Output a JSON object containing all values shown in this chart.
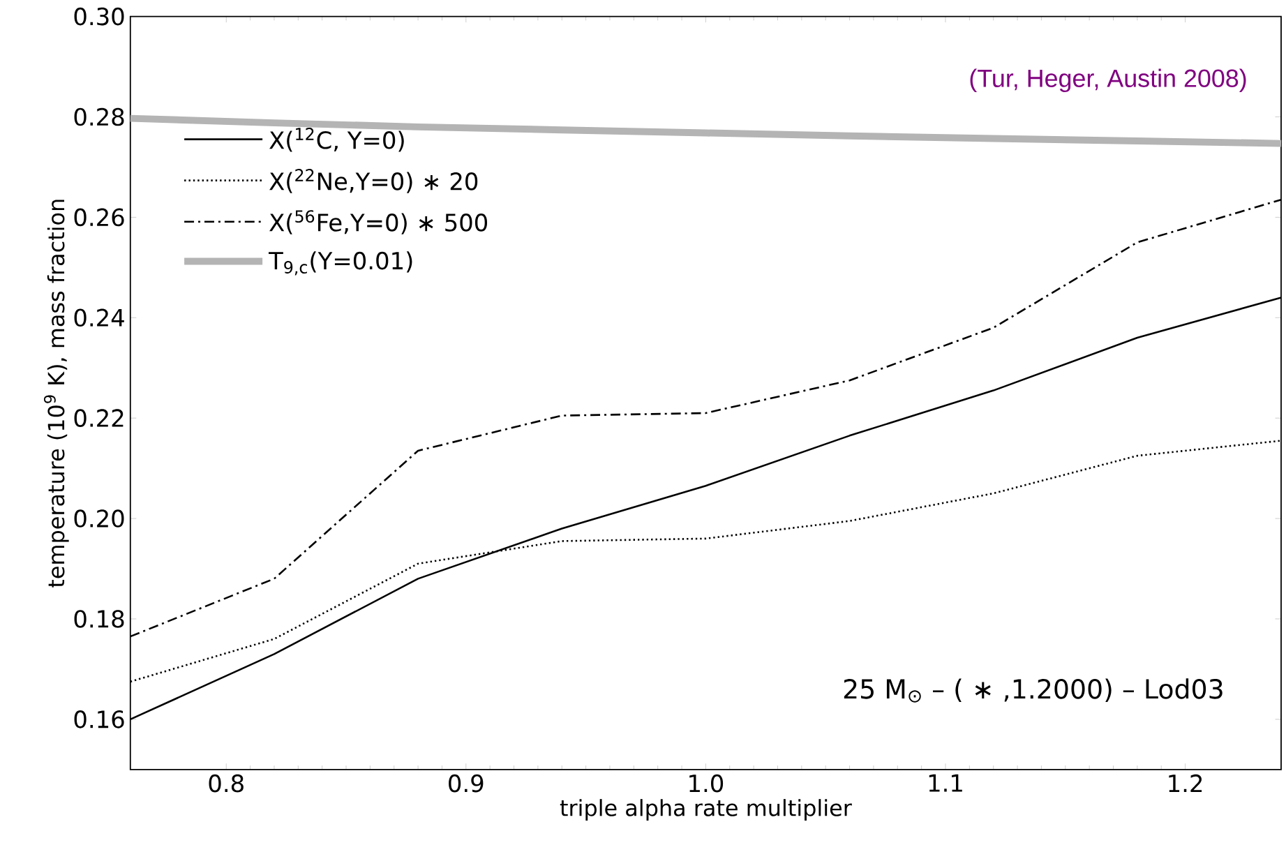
{
  "chart_data": {
    "type": "line",
    "xlabel": "triple alpha rate multiplier",
    "ylabel": "temperature (10$^{9}$ K),   mass fraction",
    "x": [
      0.76,
      0.82,
      0.88,
      0.94,
      1.0,
      1.06,
      1.12,
      1.18,
      1.24
    ],
    "series": [
      {
        "name": "X($^{12}$C, Y=0)",
        "color": "#000000",
        "line_style": "solid",
        "values": [
          0.16,
          0.173,
          0.188,
          0.198,
          0.2065,
          0.2165,
          0.2255,
          0.236,
          0.244
        ]
      },
      {
        "name": "X($^{22}$Ne,Y=0) ∗ 20",
        "color": "#000000",
        "line_style": "dotted",
        "values": [
          0.1675,
          0.176,
          0.191,
          0.1955,
          0.196,
          0.1995,
          0.205,
          0.2125,
          0.2155
        ]
      },
      {
        "name": "X($^{56}$Fe,Y=0) ∗ 500",
        "color": "#000000",
        "line_style": "dashdot",
        "values": [
          0.1765,
          0.188,
          0.2135,
          0.2205,
          0.221,
          0.2275,
          0.238,
          0.255,
          0.2635
        ]
      },
      {
        "name": "T$_{9,c}$(Y=0.01)",
        "color": "#b4b4b4",
        "line_style": "solid",
        "values": [
          0.2797,
          0.2788,
          0.278,
          0.2774,
          0.2768,
          0.2762,
          0.2757,
          0.2752,
          0.2747
        ]
      }
    ],
    "xlim": [
      0.76,
      1.24
    ],
    "ylim": [
      0.15,
      0.3
    ],
    "xticks": [
      0.8,
      0.9,
      {
        "value": 1.0,
        "label": "1.0"
      },
      1.1,
      1.2
    ],
    "yticks": [
      0.16,
      0.18,
      {
        "value": 0.2,
        "label": "0.20"
      },
      0.22,
      0.24,
      0.26,
      0.28,
      {
        "value": 0.3,
        "label": "0.30"
      }
    ],
    "legend": "top left",
    "grid": false,
    "annotations": [
      "(Tur, Heger, Austin 2008)",
      "25 M$_{⊙}$ – ( ∗ ,1.2000) – Lod03"
    ]
  }
}
